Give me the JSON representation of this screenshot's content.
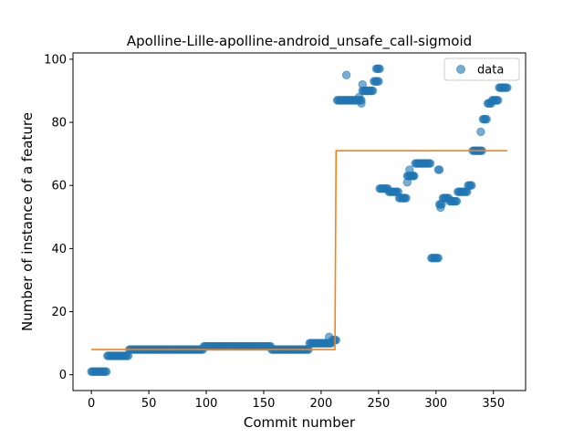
{
  "chart_data": {
    "type": "scatter",
    "title": "Apolline-Lille-apolline-android_unsafe_call-sigmoid",
    "xlabel": "Commit number",
    "ylabel": "Number of instance of a feature",
    "xlim": [
      -16,
      378
    ],
    "ylim": [
      -5,
      102
    ],
    "xticks": [
      0,
      50,
      100,
      150,
      200,
      250,
      300,
      350
    ],
    "yticks": [
      0,
      20,
      40,
      60,
      80,
      100
    ],
    "grid": false,
    "legend_position": "top-right",
    "colors": {
      "data": "#1f77b4",
      "fit": "#ff7f0e"
    },
    "series": [
      {
        "name": "data",
        "kind": "scatter",
        "segments": [
          {
            "x_from": 0,
            "x_to": 14,
            "y": 1
          },
          {
            "x_from": 14,
            "x_to": 33,
            "y": 6
          },
          {
            "x_from": 33,
            "x_to": 98,
            "y": 8
          },
          {
            "x_from": 98,
            "x_to": 157,
            "y": 9
          },
          {
            "x_from": 157,
            "x_to": 190,
            "y": 8
          },
          {
            "x_from": 190,
            "x_to": 210,
            "y": 10
          },
          {
            "x_from": 210,
            "x_to": 214,
            "y": 11
          },
          {
            "x_from": 214,
            "x_to": 224,
            "y": 87
          },
          {
            "x_from": 224,
            "x_to": 236,
            "y": 87
          },
          {
            "x_from": 236,
            "x_to": 246,
            "y": 90
          },
          {
            "x_from": 246,
            "x_to": 251,
            "y": 93
          },
          {
            "x_from": 251,
            "x_to": 259,
            "y": 59
          },
          {
            "x_from": 259,
            "x_to": 268,
            "y": 58
          },
          {
            "x_from": 268,
            "x_to": 275,
            "y": 56
          },
          {
            "x_from": 275,
            "x_to": 282,
            "y": 63
          },
          {
            "x_from": 282,
            "x_to": 296,
            "y": 67
          },
          {
            "x_from": 296,
            "x_to": 303,
            "y": 37
          },
          {
            "x_from": 303,
            "x_to": 306,
            "y": 54
          },
          {
            "x_from": 306,
            "x_to": 312,
            "y": 56
          },
          {
            "x_from": 312,
            "x_to": 319,
            "y": 55
          },
          {
            "x_from": 319,
            "x_to": 328,
            "y": 58
          },
          {
            "x_from": 328,
            "x_to": 332,
            "y": 60
          },
          {
            "x_from": 332,
            "x_to": 341,
            "y": 71
          },
          {
            "x_from": 341,
            "x_to": 345,
            "y": 81
          },
          {
            "x_from": 345,
            "x_to": 349,
            "y": 86
          },
          {
            "x_from": 349,
            "x_to": 355,
            "y": 87
          },
          {
            "x_from": 355,
            "x_to": 363,
            "y": 91
          }
        ],
        "extra_points": [
          {
            "x": 222,
            "y": 95
          },
          {
            "x": 233,
            "y": 88
          },
          {
            "x": 235,
            "y": 86
          },
          {
            "x": 236,
            "y": 92
          },
          {
            "x": 240,
            "y": 90
          },
          {
            "x": 248,
            "y": 97
          },
          {
            "x": 249,
            "y": 97
          },
          {
            "x": 250,
            "y": 97
          },
          {
            "x": 251,
            "y": 97
          },
          {
            "x": 272,
            "y": 56
          },
          {
            "x": 275,
            "y": 61
          },
          {
            "x": 277,
            "y": 65
          },
          {
            "x": 278,
            "y": 63
          },
          {
            "x": 280,
            "y": 63
          },
          {
            "x": 302,
            "y": 65
          },
          {
            "x": 303,
            "y": 65
          },
          {
            "x": 304,
            "y": 53
          },
          {
            "x": 339,
            "y": 77
          },
          {
            "x": 207,
            "y": 12
          }
        ]
      },
      {
        "name": "",
        "kind": "step-line",
        "points": [
          [
            0,
            8
          ],
          [
            212,
            8
          ],
          [
            213,
            71
          ],
          [
            362,
            71
          ]
        ]
      }
    ]
  }
}
